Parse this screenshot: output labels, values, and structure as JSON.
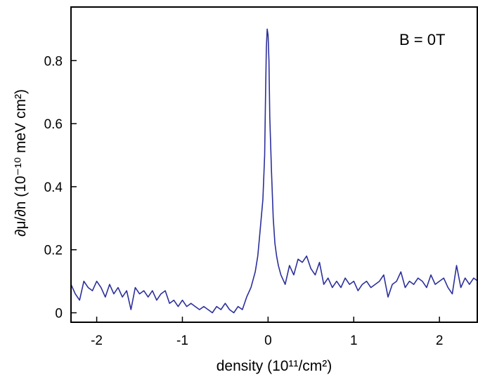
{
  "chart_data": {
    "type": "line",
    "title": "",
    "annotation": "B = 0T",
    "xlabel": "density  (10¹¹/cm²)",
    "ylabel": "∂μ/∂n  (10⁻¹⁰ meV cm²)",
    "xlim": [
      -2.3,
      2.45
    ],
    "ylim": [
      -0.03,
      0.97
    ],
    "xticks": [
      -2,
      -1,
      0,
      1,
      2
    ],
    "xtick_labels": [
      "-2",
      "-1",
      "0",
      "1",
      "2"
    ],
    "yticks": [
      0,
      0.2,
      0.4,
      0.6,
      0.8
    ],
    "ytick_labels": [
      "0",
      "0.2",
      "0.4",
      "0.6",
      "0.8"
    ],
    "grid": false,
    "line_color": "#2b2f9a",
    "series": [
      {
        "x": [
          -2.3,
          -2.25,
          -2.2,
          -2.15,
          -2.1,
          -2.05,
          -2.0,
          -1.95,
          -1.9,
          -1.85,
          -1.8,
          -1.75,
          -1.7,
          -1.65,
          -1.6,
          -1.55,
          -1.5,
          -1.45,
          -1.4,
          -1.35,
          -1.3,
          -1.25,
          -1.2,
          -1.15,
          -1.1,
          -1.05,
          -1.0,
          -0.95,
          -0.9,
          -0.85,
          -0.8,
          -0.75,
          -0.7,
          -0.65,
          -0.6,
          -0.55,
          -0.5,
          -0.45,
          -0.4,
          -0.35,
          -0.3,
          -0.25,
          -0.2,
          -0.15,
          -0.12,
          -0.1,
          -0.08,
          -0.06,
          -0.04,
          -0.03,
          -0.02,
          -0.01,
          0.0,
          0.01,
          0.02,
          0.04,
          0.06,
          0.08,
          0.1,
          0.12,
          0.15,
          0.2,
          0.25,
          0.3,
          0.35,
          0.4,
          0.45,
          0.5,
          0.55,
          0.6,
          0.65,
          0.7,
          0.75,
          0.8,
          0.85,
          0.9,
          0.95,
          1.0,
          1.05,
          1.1,
          1.15,
          1.2,
          1.25,
          1.3,
          1.35,
          1.4,
          1.45,
          1.5,
          1.55,
          1.6,
          1.65,
          1.7,
          1.75,
          1.8,
          1.85,
          1.9,
          1.95,
          2.0,
          2.05,
          2.1,
          2.15,
          2.2,
          2.25,
          2.3,
          2.35,
          2.4,
          2.45
        ],
        "y": [
          0.09,
          0.06,
          0.04,
          0.1,
          0.08,
          0.07,
          0.1,
          0.08,
          0.05,
          0.09,
          0.06,
          0.08,
          0.05,
          0.07,
          0.01,
          0.08,
          0.06,
          0.07,
          0.05,
          0.07,
          0.04,
          0.06,
          0.07,
          0.03,
          0.04,
          0.02,
          0.04,
          0.02,
          0.03,
          0.02,
          0.01,
          0.02,
          0.01,
          0.0,
          0.02,
          0.01,
          0.03,
          0.01,
          0.0,
          0.02,
          0.01,
          0.05,
          0.08,
          0.13,
          0.18,
          0.24,
          0.3,
          0.36,
          0.5,
          0.68,
          0.84,
          0.9,
          0.88,
          0.8,
          0.62,
          0.45,
          0.3,
          0.22,
          0.18,
          0.15,
          0.12,
          0.09,
          0.15,
          0.12,
          0.17,
          0.16,
          0.18,
          0.14,
          0.12,
          0.16,
          0.09,
          0.11,
          0.08,
          0.1,
          0.08,
          0.11,
          0.09,
          0.1,
          0.07,
          0.09,
          0.1,
          0.08,
          0.09,
          0.1,
          0.12,
          0.05,
          0.09,
          0.1,
          0.13,
          0.08,
          0.1,
          0.09,
          0.11,
          0.1,
          0.08,
          0.12,
          0.09,
          0.1,
          0.11,
          0.08,
          0.06,
          0.15,
          0.08,
          0.11,
          0.09,
          0.11,
          0.1
        ]
      }
    ]
  }
}
